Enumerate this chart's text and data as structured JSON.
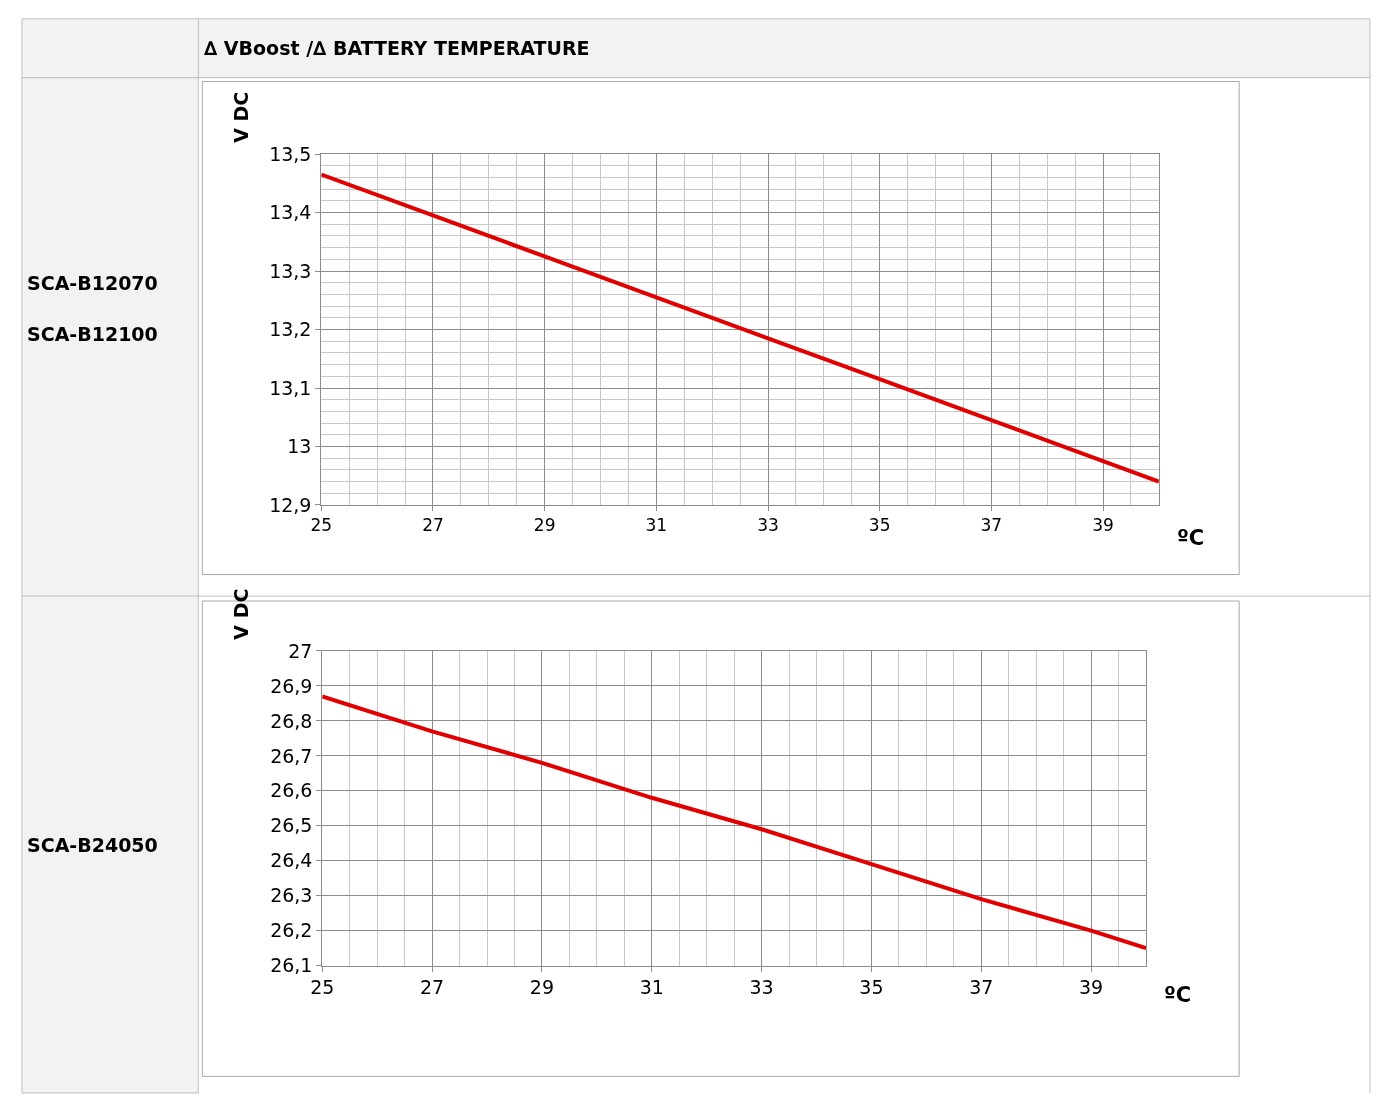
{
  "chart_data": [
    {
      "type": "line",
      "title": "∆ VBoost /∆ BATTERY TEMPERATURE",
      "xlabel": "ºC",
      "ylabel": "V DC",
      "annotations": [
        "SCA-B12070",
        "SCA-B12100"
      ],
      "x": [
        25,
        27,
        29,
        31,
        33,
        35,
        37,
        39,
        40
      ],
      "series": [
        {
          "color": "#e00000",
          "values": [
            13.465,
            13.395,
            13.325,
            13.255,
            13.185,
            13.115,
            13.045,
            12.975,
            12.94
          ]
        }
      ],
      "xlim": [
        25,
        40
      ],
      "ylim": [
        12.9,
        13.5
      ],
      "xticks": [
        25,
        27,
        29,
        31,
        33,
        35,
        37,
        39
      ],
      "yticks": [
        {
          "value": 12.9,
          "label": "12,9"
        },
        13,
        {
          "value": 13.1,
          "label": "13,1"
        },
        {
          "value": 13.2,
          "label": "13,2"
        },
        {
          "value": 13.3,
          "label": "13,3"
        },
        {
          "value": 13.4,
          "label": "13,4"
        },
        {
          "value": 13.5,
          "label": "13,5"
        }
      ],
      "grid": true,
      "marker": "none",
      "line_style": "solid"
    },
    {
      "type": "line",
      "xlabel": "ºC",
      "ylabel": "V DC",
      "annotations": [
        "SCA-B24050"
      ],
      "x": [
        25,
        27,
        29,
        31,
        33,
        35,
        37,
        39,
        40
      ],
      "series": [
        {
          "color": "#e00000",
          "values": [
            26.87,
            26.77,
            26.68,
            26.58,
            26.49,
            26.39,
            26.29,
            26.2,
            26.15
          ]
        }
      ],
      "xlim": [
        25,
        40
      ],
      "ylim": [
        26.1,
        27
      ],
      "xticks": [
        25,
        27,
        29,
        31,
        33,
        35,
        37,
        39
      ],
      "yticks": [
        {
          "value": 26.1,
          "label": "26,1"
        },
        {
          "value": 26.2,
          "label": "26,2"
        },
        {
          "value": 26.3,
          "label": "26,3"
        },
        {
          "value": 26.4,
          "label": "26,4"
        },
        {
          "value": 26.5,
          "label": "26,5"
        },
        {
          "value": 26.6,
          "label": "26,6"
        },
        {
          "value": 26.7,
          "label": "26,7"
        },
        {
          "value": 26.8,
          "label": "26,8"
        },
        {
          "value": 26.9,
          "label": "26,9"
        },
        27
      ],
      "grid": true,
      "marker": "none",
      "line_style": "solid"
    }
  ]
}
